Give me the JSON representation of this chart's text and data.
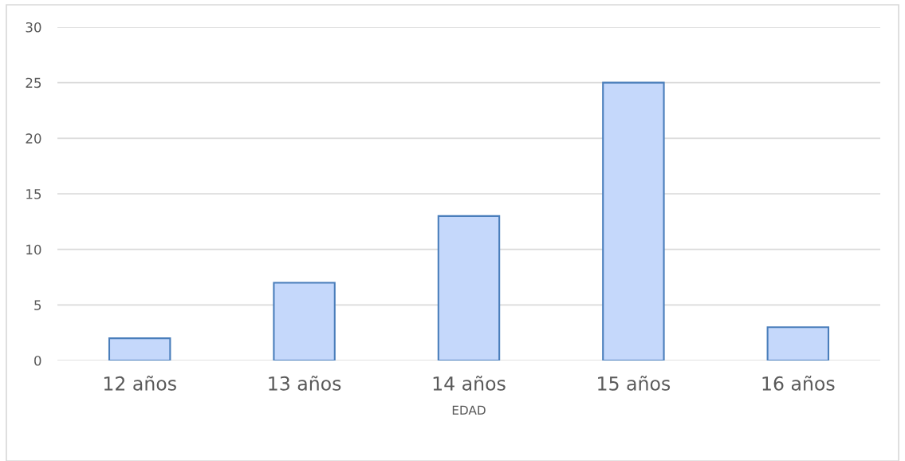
{
  "chart_data": {
    "type": "bar",
    "xlabel": "EDAD",
    "categories": [
      "12 años",
      "13 años",
      "14 años",
      "15 años",
      "16 años"
    ],
    "values": [
      2,
      7,
      13,
      25,
      3
    ],
    "color": "#c5d8fb",
    "ylim": [
      0,
      30
    ],
    "yticks": [
      0,
      5,
      10,
      15,
      20,
      25,
      30
    ],
    "grid": "y"
  }
}
